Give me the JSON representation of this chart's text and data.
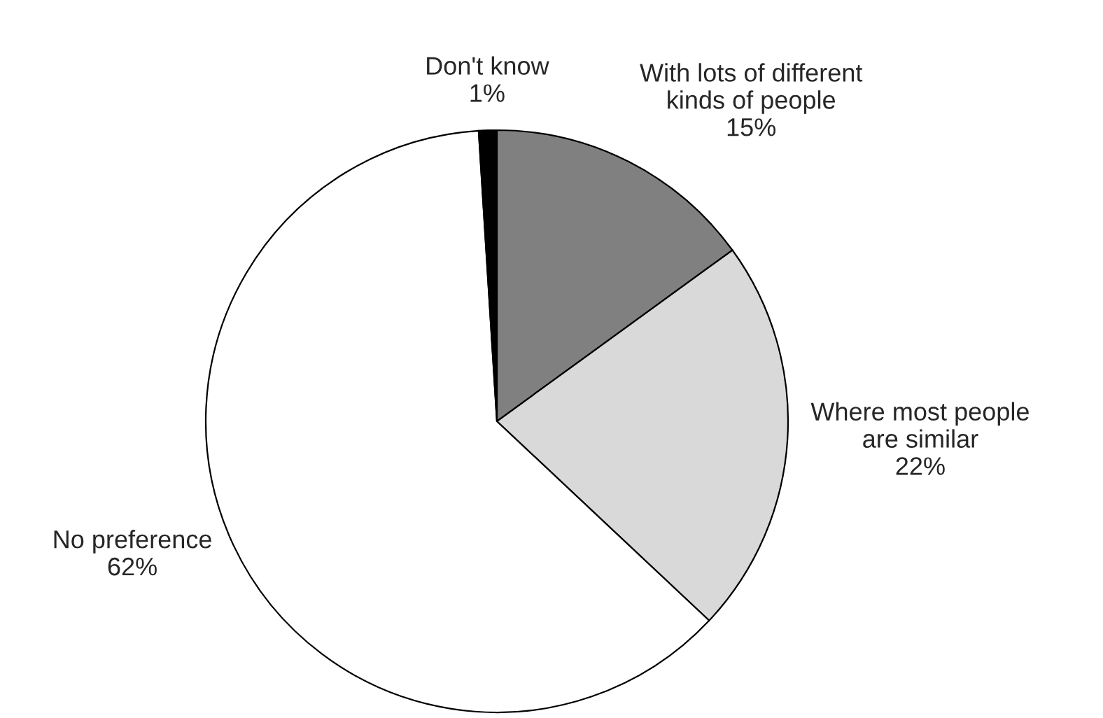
{
  "chart_data": {
    "type": "pie",
    "categories": [
      "With lots of different\nkinds of people",
      "Where most people\nare similar",
      "No preference",
      "Don't know"
    ],
    "values": [
      15,
      22,
      62,
      1
    ],
    "value_labels": [
      "15%",
      "22%",
      "62%",
      "1%"
    ],
    "colors": [
      "#808080",
      "#d9d9d9",
      "#ffffff",
      "#000000"
    ]
  }
}
